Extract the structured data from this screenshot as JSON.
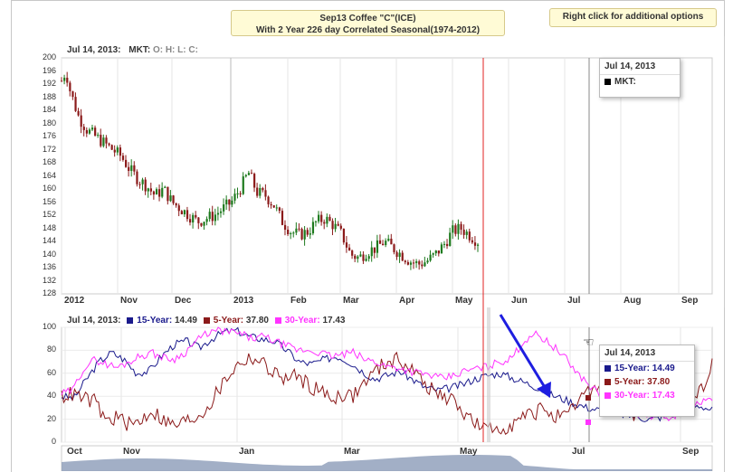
{
  "title": {
    "line1": "Sep13 Coffee \"C\"(ICE)",
    "line2": "With 2 Year 226 day Correlated Seasonal(1974-2012)"
  },
  "options_label": "Right click for additional options",
  "top_header": {
    "date": "Jul 14, 2013:",
    "mkt": "MKT:",
    "o": "O:",
    "h": "H:",
    "l": "L:",
    "c": "C:"
  },
  "bottom_header": {
    "date": "Jul 14, 2013:",
    "s15_label": "15-Year:",
    "s15_val": "14.49",
    "s5_label": "5-Year:",
    "s5_val": "37.80",
    "s30_label": "30-Year:",
    "s30_val": "17.43"
  },
  "top_tooltip": {
    "date": "Jul 14, 2013",
    "mkt": "MKT:"
  },
  "bottom_tooltip": {
    "date": "Jul 14, 2013",
    "s15": "15-Year: 14.49",
    "s5": "5-Year: 37.80",
    "s30": "30-Year: 17.43"
  },
  "colors": {
    "s15": "#1a1a8c",
    "s5": "#8b1a1a",
    "s30": "#ff33ff",
    "up": "#1e7a1e",
    "down": "#8b1a1a",
    "marker": "#e02020",
    "arrow": "#1e1ee0"
  },
  "chart_data": [
    {
      "type": "bar",
      "subtype": "ohlc",
      "ylim": [
        128,
        200
      ],
      "yticks": [
        "200",
        "196",
        "192",
        "188",
        "184",
        "180",
        "176",
        "172",
        "168",
        "164",
        "160",
        "156",
        "152",
        "148",
        "144",
        "140",
        "136",
        "132",
        "128"
      ],
      "xticks": [
        "2012",
        "Nov",
        "Dec",
        "2013",
        "Feb",
        "Mar",
        "Apr",
        "May",
        "Jun",
        "Jul",
        "Aug",
        "Sep"
      ],
      "close_path": [
        [
          0,
          193
        ],
        [
          0.5,
          196
        ],
        [
          1,
          190
        ],
        [
          2,
          182
        ],
        [
          3,
          178
        ],
        [
          4,
          176
        ],
        [
          5,
          174
        ],
        [
          6,
          172
        ],
        [
          7,
          170
        ],
        [
          8,
          166
        ],
        [
          9,
          163
        ],
        [
          10,
          161
        ],
        [
          11,
          158
        ],
        [
          12,
          160
        ],
        [
          13,
          156
        ],
        [
          14,
          154
        ],
        [
          15,
          152
        ],
        [
          16,
          150
        ],
        [
          17,
          151
        ],
        [
          18,
          152
        ],
        [
          19,
          154
        ],
        [
          20,
          156
        ],
        [
          21,
          160
        ],
        [
          22,
          165
        ],
        [
          23,
          159
        ],
        [
          24,
          158
        ],
        [
          25,
          155
        ],
        [
          26,
          150
        ],
        [
          27,
          147
        ],
        [
          28,
          146
        ],
        [
          29,
          147
        ],
        [
          30,
          150
        ],
        [
          31,
          151
        ],
        [
          32,
          149
        ],
        [
          33,
          146
        ],
        [
          34,
          140
        ],
        [
          35,
          139
        ],
        [
          36,
          141
        ],
        [
          37,
          142
        ],
        [
          38,
          144
        ],
        [
          39,
          142
        ],
        [
          40,
          140
        ],
        [
          41,
          138
        ],
        [
          42,
          137
        ],
        [
          43,
          138
        ],
        [
          44,
          140
        ],
        [
          45,
          143
        ],
        [
          46,
          147
        ],
        [
          47,
          148
        ],
        [
          48,
          146
        ],
        [
          49,
          144
        ]
      ]
    },
    {
      "type": "line",
      "ylim": [
        0,
        100
      ],
      "yticks": [
        "100",
        "80",
        "60",
        "40",
        "20",
        "0"
      ],
      "xticks": [
        "Oct",
        "Nov",
        "Jan",
        "Mar",
        "May",
        "Jul",
        "Sep"
      ],
      "series": [
        {
          "name": "15-Year",
          "values": [
            40,
            38,
            55,
            70,
            78,
            72,
            60,
            62,
            75,
            85,
            88,
            82,
            90,
            96,
            97,
            92,
            90,
            88,
            80,
            70,
            68,
            72,
            75,
            70,
            62,
            55,
            58,
            62,
            55,
            48,
            45,
            47,
            50,
            55,
            58,
            60,
            56,
            52,
            48,
            42,
            38,
            34,
            30,
            28,
            26,
            24,
            22,
            20,
            22,
            25,
            30,
            32,
            28
          ]
        },
        {
          "name": "5-Year",
          "values": [
            40,
            42,
            38,
            35,
            18,
            22,
            15,
            18,
            28,
            20,
            14,
            18,
            22,
            30,
            45,
            60,
            70,
            74,
            68,
            60,
            55,
            58,
            50,
            45,
            38,
            42,
            40,
            52,
            62,
            70,
            72,
            66,
            55,
            45,
            40,
            35,
            25,
            15,
            10,
            12,
            15,
            20,
            25,
            30,
            22,
            20,
            35,
            45,
            50,
            30,
            28,
            25,
            40,
            55,
            62,
            45,
            38,
            45,
            72
          ]
        },
        {
          "name": "30-Year",
          "values": [
            42,
            45,
            65,
            72,
            68,
            65,
            70,
            75,
            78,
            74,
            72,
            78,
            88,
            95,
            97,
            96,
            94,
            90,
            92,
            88,
            84,
            80,
            80,
            78,
            75,
            76,
            78,
            72,
            70,
            66,
            65,
            62,
            60,
            58,
            55,
            58,
            62,
            64,
            66,
            70,
            72,
            85,
            95,
            90,
            82,
            72,
            60,
            50,
            42,
            38,
            30,
            26,
            24,
            22,
            20,
            25,
            30,
            34,
            38
          ]
        }
      ]
    }
  ]
}
